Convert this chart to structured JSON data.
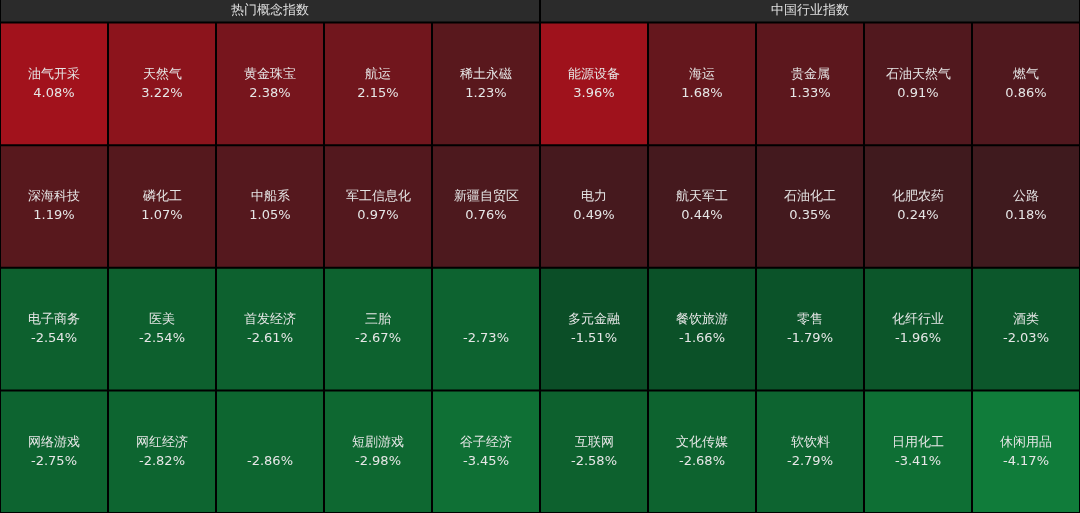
{
  "chart_data": [
    {
      "type": "other",
      "title": "热门概念指数",
      "categories": [
        "油气开采",
        "天然气",
        "黄金珠宝",
        "航运",
        "稀土永磁",
        "深海科技",
        "磷化工",
        "中船系",
        "军工信息化",
        "新疆自贸区",
        "电子商务",
        "医美",
        "首发经济",
        "三胎",
        null,
        "网络游戏",
        "网红经济",
        null,
        "短剧游戏",
        "谷子经济"
      ],
      "values": [
        4.08,
        3.22,
        2.38,
        2.15,
        1.23,
        1.19,
        1.07,
        1.05,
        0.97,
        0.76,
        -2.54,
        -2.54,
        -2.61,
        -2.67,
        -2.73,
        -2.75,
        -2.82,
        -2.86,
        -2.98,
        -3.45
      ],
      "value_labels": [
        "4.08%",
        "3.22%",
        "2.38%",
        "2.15%",
        "1.23%",
        "1.19%",
        "1.07%",
        "1.05%",
        "0.97%",
        "0.76%",
        "-2.54%",
        "-2.54%",
        "-2.61%",
        "-2.67%",
        "-2.73%",
        "-2.75%",
        "-2.82%",
        "-2.86%",
        "-2.98%",
        "-3.45%"
      ]
    },
    {
      "type": "other",
      "title": "中国行业指数",
      "categories": [
        "能源设备",
        "海运",
        "贵金属",
        "石油天然气",
        "燃气",
        "电力",
        "航天军工",
        "石油化工",
        "化肥农药",
        "公路",
        "多元金融",
        "餐饮旅游",
        "零售",
        "化纤行业",
        "酒类",
        "互联网",
        "文化传媒",
        "软饮料",
        "日用化工",
        "休闲用品"
      ],
      "values": [
        3.96,
        1.68,
        1.33,
        0.91,
        0.86,
        0.49,
        0.44,
        0.35,
        0.24,
        0.18,
        -1.51,
        -1.66,
        -1.79,
        -1.96,
        -2.03,
        -2.58,
        -2.68,
        -2.79,
        -3.41,
        -4.17
      ],
      "value_labels": [
        "3.96%",
        "1.68%",
        "1.33%",
        "0.91%",
        "0.86%",
        "0.49%",
        "0.44%",
        "0.35%",
        "0.24%",
        "0.18%",
        "-1.51%",
        "-1.66%",
        "-1.79%",
        "-1.96%",
        "-2.03%",
        "-2.58%",
        "-2.68%",
        "-2.79%",
        "-3.41%",
        "-4.17%"
      ]
    }
  ]
}
